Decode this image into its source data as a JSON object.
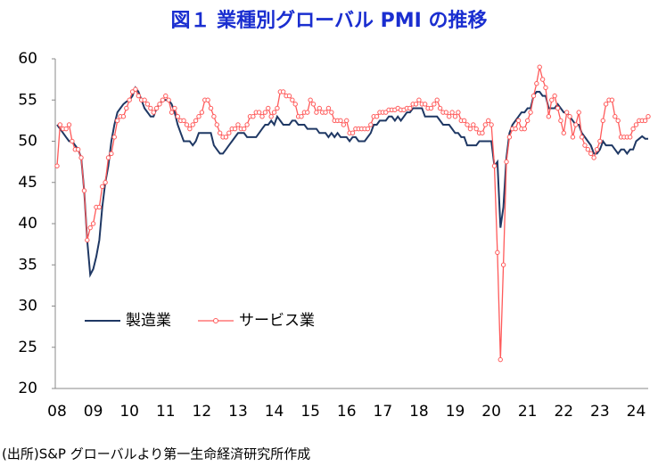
{
  "chart_data": {
    "type": "line",
    "title": "図１ 業種別グローバル PMI の推移",
    "source": "(出所)S&P グローバルより第一生命経済研究所作成",
    "categories": [
      "08",
      null,
      null,
      null,
      null,
      null,
      null,
      null,
      null,
      null,
      null,
      null,
      "09",
      null,
      null,
      null,
      null,
      null,
      null,
      null,
      null,
      null,
      null,
      null,
      "10",
      null,
      null,
      null,
      null,
      null,
      null,
      null,
      null,
      null,
      null,
      null,
      "11",
      null,
      null,
      null,
      null,
      null,
      null,
      null,
      null,
      null,
      null,
      null,
      "12",
      null,
      null,
      null,
      null,
      null,
      null,
      null,
      null,
      null,
      null,
      null,
      "13",
      null,
      null,
      null,
      null,
      null,
      null,
      null,
      null,
      null,
      null,
      null,
      "14",
      null,
      null,
      null,
      null,
      null,
      null,
      null,
      null,
      null,
      null,
      null,
      "15",
      null,
      null,
      null,
      null,
      null,
      null,
      null,
      null,
      null,
      null,
      null,
      "16",
      null,
      null,
      null,
      null,
      null,
      null,
      null,
      null,
      null,
      null,
      null,
      "17",
      null,
      null,
      null,
      null,
      null,
      null,
      null,
      null,
      null,
      null,
      null,
      "18",
      null,
      null,
      null,
      null,
      null,
      null,
      null,
      null,
      null,
      null,
      null,
      "19",
      null,
      null,
      null,
      null,
      null,
      null,
      null,
      null,
      null,
      null,
      null,
      "20",
      null,
      null,
      null,
      null,
      null,
      null,
      null,
      null,
      null,
      null,
      null,
      "21",
      null,
      null,
      null,
      null,
      null,
      null,
      null,
      null,
      null,
      null,
      null,
      "22",
      null,
      null,
      null,
      null,
      null,
      null,
      null,
      null,
      null,
      null,
      null,
      "23",
      null,
      null,
      null,
      null,
      null,
      null,
      null,
      null,
      null,
      null,
      null,
      "24",
      null,
      null,
      null,
      null
    ],
    "series": [
      {
        "name": "製造業",
        "color": "#1f3864",
        "marker": false,
        "values": [
          52,
          51.5,
          51,
          50.5,
          50,
          50,
          49.5,
          49,
          48,
          44,
          38,
          33.8,
          34.5,
          36,
          38,
          42,
          45,
          47,
          50,
          52,
          53.5,
          54,
          54.5,
          54.8,
          55,
          55.5,
          56.5,
          56,
          55,
          54,
          53.5,
          53,
          53,
          54,
          54.5,
          55,
          55,
          55,
          54.5,
          53.5,
          52,
          51,
          50,
          50,
          50,
          49.5,
          50,
          51,
          51,
          51,
          51,
          51,
          49.5,
          49,
          48.5,
          48.5,
          49,
          49.5,
          50,
          50.5,
          51,
          51,
          51,
          50.5,
          50.5,
          50.5,
          50.5,
          51,
          51.5,
          52,
          52,
          52.5,
          52,
          53,
          52.5,
          52,
          52,
          52,
          52.5,
          52.5,
          52,
          52,
          52,
          51.5,
          51.5,
          51.5,
          51.5,
          51,
          51,
          51,
          50.5,
          51,
          50.5,
          51,
          50.5,
          50.5,
          50.5,
          50,
          50.5,
          50.5,
          50,
          50,
          50,
          50.5,
          51,
          52,
          52,
          52.5,
          52.5,
          52.5,
          53,
          53,
          52.5,
          53,
          52.5,
          53,
          53.5,
          53.5,
          54,
          54,
          54,
          54,
          53,
          53,
          53,
          53,
          53,
          52.5,
          52,
          52,
          52,
          51.5,
          51,
          51,
          50.5,
          50.5,
          49.5,
          49.5,
          49.5,
          49.5,
          50,
          50,
          50,
          50,
          50,
          47,
          47.5,
          39.5,
          42,
          48,
          51,
          52,
          52.5,
          53,
          53.5,
          53.5,
          54,
          54,
          55.5,
          56,
          56,
          55.5,
          55.5,
          54,
          54,
          54,
          54.5,
          54,
          53.5,
          53.5,
          53,
          52.5,
          52,
          52,
          51,
          50.5,
          50,
          49.5,
          48.5,
          48.5,
          49,
          50,
          49.5,
          49.5,
          49.5,
          49,
          48.5,
          49,
          49,
          48.5,
          49,
          49,
          50,
          50.3,
          50.6,
          50.3,
          50.3
        ]
      },
      {
        "name": "サービス業",
        "color": "#ff5a5a",
        "marker": true,
        "values": [
          47,
          52,
          51.5,
          51.5,
          52,
          50,
          49,
          49,
          48,
          44,
          38,
          39.5,
          40,
          42,
          42,
          44.5,
          45,
          48,
          48.5,
          50.5,
          52.5,
          53,
          53,
          54,
          55,
          56,
          56.3,
          55.5,
          55,
          55,
          54.5,
          54,
          53.5,
          54,
          54.5,
          55,
          55.5,
          55,
          53.5,
          54,
          53,
          52.5,
          52.5,
          52,
          51.5,
          52,
          52.5,
          53,
          53.5,
          55,
          55,
          54,
          53,
          52,
          51,
          50.5,
          50.5,
          51,
          51.5,
          51.5,
          52,
          51.5,
          51.5,
          52,
          53,
          53,
          53.5,
          53.5,
          53,
          53.5,
          54,
          53,
          53.5,
          54,
          56,
          56,
          55.5,
          55.5,
          55,
          54.5,
          53,
          53,
          53.5,
          53.5,
          55,
          54.5,
          53.5,
          54,
          53.5,
          53.5,
          54,
          53.5,
          52.5,
          52.5,
          52.5,
          52,
          52.5,
          51,
          51,
          51.5,
          51.5,
          51.5,
          51.5,
          51.5,
          52,
          53,
          53,
          53.5,
          53.5,
          53.5,
          53.8,
          53.8,
          53.8,
          54,
          53.8,
          53.8,
          54,
          54,
          54.5,
          54.5,
          55,
          54.5,
          54.5,
          54,
          54,
          54.5,
          55,
          54,
          53.5,
          53.5,
          53,
          53.5,
          53,
          53.5,
          52.5,
          52.5,
          52,
          51.5,
          52,
          51.5,
          51,
          51,
          52,
          52.5,
          52,
          47,
          36.5,
          23.5,
          35,
          47.5,
          50.5,
          51.5,
          51.5,
          52.5,
          51.5,
          51.5,
          52.5,
          53.5,
          55.5,
          57,
          59,
          57.5,
          56.5,
          53,
          55,
          55.5,
          54,
          52.5,
          51,
          53.5,
          53,
          50.5,
          52,
          53.5,
          50.5,
          49.5,
          49,
          48.5,
          48,
          49,
          50,
          52.5,
          54.5,
          55,
          55,
          53,
          52.5,
          50.5,
          50.5,
          50.5,
          50.5,
          51.5,
          52,
          52.5,
          52.5,
          52.5,
          53
        ]
      }
    ],
    "ylim": [
      20,
      60
    ],
    "yticks": [
      20,
      25,
      30,
      35,
      40,
      45,
      50,
      55,
      60
    ],
    "grid": false,
    "legend": "lower left"
  }
}
